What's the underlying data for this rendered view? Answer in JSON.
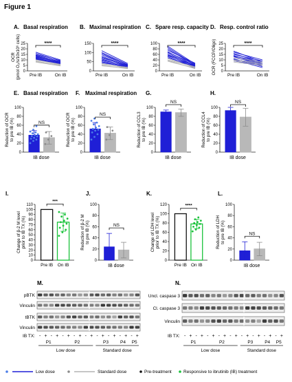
{
  "figure_title": "Figure 1",
  "colors": {
    "low_dose": "#1f1fd6",
    "standard_dose": "#b3b3b3",
    "pre_treatment": "#111111",
    "responder": "#19c23a"
  },
  "legend": {
    "low_dose": "Low dose",
    "standard_dose": "Standard dose",
    "pre_treatment": "Pre-treatment",
    "responder": "Responsive to ibrutinib (IB) treatment"
  },
  "chart_data": [
    {
      "panel": "A.",
      "title": "Basal respiration",
      "type": "line",
      "ylabel": "OCR\n(pmol O₂/s/10x10⁶ cells)",
      "yticks": [
        "0",
        "5",
        "10",
        "15",
        "20",
        "25"
      ],
      "ylim": [
        0,
        25
      ],
      "categories": [
        "Pre IB",
        "On IB"
      ],
      "significance": "****",
      "series": [
        {
          "group": "low",
          "values": [
            17,
            10
          ]
        },
        {
          "group": "low",
          "values": [
            16,
            9
          ]
        },
        {
          "group": "low",
          "values": [
            15,
            9.5
          ]
        },
        {
          "group": "low",
          "values": [
            14.5,
            8
          ]
        },
        {
          "group": "low",
          "values": [
            14,
            8.5
          ]
        },
        {
          "group": "low",
          "values": [
            13.5,
            7.5
          ]
        },
        {
          "group": "low",
          "values": [
            13,
            7
          ]
        },
        {
          "group": "low",
          "values": [
            12.5,
            7.8
          ]
        },
        {
          "group": "low",
          "values": [
            12,
            6.5
          ]
        },
        {
          "group": "low",
          "values": [
            11.5,
            6
          ]
        },
        {
          "group": "low",
          "values": [
            11,
            7
          ]
        },
        {
          "group": "low",
          "values": [
            10.5,
            6.2
          ]
        },
        {
          "group": "standard",
          "values": [
            10,
            6
          ]
        },
        {
          "group": "standard",
          "values": [
            9,
            5
          ]
        },
        {
          "group": "standard",
          "values": [
            8.5,
            5.5
          ]
        },
        {
          "group": "standard",
          "values": [
            8,
            4.5
          ]
        }
      ]
    },
    {
      "panel": "B.",
      "title": "Maximal respiration",
      "type": "line",
      "yticks": [
        "0",
        "50",
        "100",
        "150"
      ],
      "ylim": [
        0,
        150
      ],
      "categories": [
        "Pre IB",
        "On IB"
      ],
      "significance": "****",
      "series": [
        {
          "group": "low",
          "values": [
            110,
            40
          ]
        },
        {
          "group": "low",
          "values": [
            100,
            35
          ]
        },
        {
          "group": "low",
          "values": [
            95,
            30
          ]
        },
        {
          "group": "low",
          "values": [
            88,
            32
          ]
        },
        {
          "group": "low",
          "values": [
            80,
            28
          ]
        },
        {
          "group": "low",
          "values": [
            75,
            25
          ]
        },
        {
          "group": "low",
          "values": [
            70,
            30
          ]
        },
        {
          "group": "low",
          "values": [
            65,
            22
          ]
        },
        {
          "group": "low",
          "values": [
            60,
            26
          ]
        },
        {
          "group": "low",
          "values": [
            55,
            20
          ]
        },
        {
          "group": "low",
          "values": [
            50,
            18
          ]
        },
        {
          "group": "low",
          "values": [
            45,
            22
          ]
        },
        {
          "group": "standard",
          "values": [
            40,
            15
          ]
        },
        {
          "group": "standard",
          "values": [
            35,
            20
          ]
        },
        {
          "group": "standard",
          "values": [
            30,
            12
          ]
        },
        {
          "group": "standard",
          "values": [
            28,
            14
          ]
        }
      ]
    },
    {
      "panel": "C.",
      "title": "Spare resp. capacity",
      "type": "line",
      "yticks": [
        "0",
        "20",
        "40",
        "60",
        "80",
        "100"
      ],
      "ylim": [
        0,
        100
      ],
      "categories": [
        "Pre IB",
        "On IB"
      ],
      "significance": "****",
      "series": [
        {
          "group": "low",
          "values": [
            90,
            25
          ]
        },
        {
          "group": "low",
          "values": [
            85,
            22
          ]
        },
        {
          "group": "low",
          "values": [
            80,
            20
          ]
        },
        {
          "group": "low",
          "values": [
            75,
            28
          ]
        },
        {
          "group": "low",
          "values": [
            70,
            18
          ]
        },
        {
          "group": "low",
          "values": [
            68,
            24
          ]
        },
        {
          "group": "low",
          "values": [
            65,
            15
          ]
        },
        {
          "group": "low",
          "values": [
            60,
            20
          ]
        },
        {
          "group": "low",
          "values": [
            58,
            12
          ]
        },
        {
          "group": "low",
          "values": [
            55,
            18
          ]
        },
        {
          "group": "low",
          "values": [
            52,
            10
          ]
        },
        {
          "group": "low",
          "values": [
            48,
            16
          ]
        },
        {
          "group": "standard",
          "values": [
            45,
            12
          ]
        },
        {
          "group": "standard",
          "values": [
            40,
            15
          ]
        },
        {
          "group": "standard",
          "values": [
            38,
            8
          ]
        },
        {
          "group": "standard",
          "values": [
            35,
            10
          ]
        }
      ]
    },
    {
      "panel": "D.",
      "title": "Resp. control ratio",
      "type": "line",
      "ylabel": "OCR (FCCP/Oligo)",
      "yticks": [
        "0",
        "5",
        "10",
        "15",
        "20",
        "25"
      ],
      "ylim": [
        0,
        25
      ],
      "categories": [
        "Pre IB",
        "On IB"
      ],
      "significance": "****",
      "series": [
        {
          "group": "low",
          "values": [
            18,
            8
          ]
        },
        {
          "group": "low",
          "values": [
            17,
            10
          ]
        },
        {
          "group": "low",
          "values": [
            16,
            7
          ]
        },
        {
          "group": "low",
          "values": [
            15,
            9
          ]
        },
        {
          "group": "low",
          "values": [
            14,
            6
          ]
        },
        {
          "group": "low",
          "values": [
            13.5,
            8
          ]
        },
        {
          "group": "low",
          "values": [
            13,
            5
          ]
        },
        {
          "group": "low",
          "values": [
            12,
            7
          ]
        },
        {
          "group": "low",
          "values": [
            11,
            4
          ]
        },
        {
          "group": "low",
          "values": [
            10.5,
            6
          ]
        },
        {
          "group": "low",
          "values": [
            10,
            3
          ]
        },
        {
          "group": "low",
          "values": [
            9,
            5
          ]
        },
        {
          "group": "standard",
          "values": [
            12,
            8
          ]
        },
        {
          "group": "standard",
          "values": [
            10,
            7
          ]
        },
        {
          "group": "standard",
          "values": [
            9,
            6
          ]
        },
        {
          "group": "standard",
          "values": [
            8,
            5
          ]
        }
      ]
    },
    {
      "panel": "E.",
      "title": "Basal respiration",
      "type": "bar",
      "ylabel": "Reduction of OCR\nto pre IB (%)",
      "yticks": [
        "0",
        "20",
        "40",
        "60",
        "80",
        "100"
      ],
      "ylim": [
        0,
        100
      ],
      "xlabel": "IB dose",
      "significance": "NS",
      "bars": [
        {
          "group": "low",
          "value": 38,
          "err": 10,
          "points": [
            20,
            25,
            28,
            30,
            32,
            35,
            36,
            38,
            40,
            42,
            44,
            46,
            50,
            58
          ]
        },
        {
          "group": "standard",
          "value": 32,
          "err": 14,
          "points": [
            18,
            28,
            36,
            44
          ]
        }
      ]
    },
    {
      "panel": "F.",
      "title": "Maximal respiration",
      "type": "bar",
      "ylabel": "Reduction of OCR\nto pre IB (%)",
      "yticks": [
        "0",
        "20",
        "40",
        "60",
        "80",
        "100"
      ],
      "ylim": [
        0,
        100
      ],
      "xlabel": "IB dose",
      "significance": "NS",
      "bars": [
        {
          "group": "low",
          "value": 52,
          "err": 14,
          "points": [
            28,
            34,
            40,
            44,
            48,
            50,
            52,
            55,
            58,
            62,
            66,
            70,
            75
          ]
        },
        {
          "group": "standard",
          "value": 42,
          "err": 14,
          "points": [
            28,
            38,
            48,
            56
          ]
        }
      ]
    },
    {
      "panel": "G.",
      "title": "",
      "type": "bar",
      "ylabel": "Reduction of CCL3\nto pre IB (%)",
      "yticks": [
        "0",
        "20",
        "40",
        "60",
        "80",
        "100"
      ],
      "ylim": [
        0,
        100
      ],
      "xlabel": "IB dose",
      "significance": "NS",
      "bars": [
        {
          "group": "low",
          "value": 90,
          "err": 4,
          "points": []
        },
        {
          "group": "standard",
          "value": 88,
          "err": 8,
          "points": []
        }
      ]
    },
    {
      "panel": "H.",
      "title": "",
      "type": "bar",
      "ylabel": "Reduction of CCL4\nto pre IB (%)",
      "yticks": [
        "0",
        "20",
        "40",
        "60",
        "80",
        "100"
      ],
      "ylim": [
        0,
        100
      ],
      "xlabel": "IB dose",
      "significance": "NS",
      "bars": [
        {
          "group": "low",
          "value": 93,
          "err": 8,
          "points": []
        },
        {
          "group": "standard",
          "value": 78,
          "err": 20,
          "points": []
        }
      ]
    },
    {
      "panel": "I.",
      "title": "",
      "type": "bar",
      "ylabel": "Change of β-2 M level\nprior to IB TX (%)",
      "yticks": [
        "0",
        "10",
        "20",
        "30",
        "40",
        "50",
        "60",
        "70",
        "80",
        "90",
        "100",
        "110"
      ],
      "ylim": [
        0,
        110
      ],
      "categories": [
        "Pre IB",
        "On IB"
      ],
      "significance": "***",
      "bars": [
        {
          "group": "pre",
          "value": 100,
          "err": 0,
          "points": []
        },
        {
          "group": "responder",
          "value": 75,
          "err": 18,
          "points": [
            48,
            55,
            60,
            64,
            68,
            72,
            75,
            78,
            82,
            86,
            90,
            95
          ]
        }
      ]
    },
    {
      "panel": "J.",
      "title": "",
      "type": "bar",
      "ylabel": "Reduction of β-2 M\nto pre IB (%)",
      "yticks": [
        "0",
        "20",
        "40",
        "60",
        "80",
        "100"
      ],
      "ylim": [
        0,
        100
      ],
      "xlabel": "IB dose",
      "significance": "NS",
      "bars": [
        {
          "group": "low",
          "value": 24,
          "err": 24,
          "points": []
        },
        {
          "group": "standard",
          "value": 18,
          "err": 14,
          "points": []
        }
      ]
    },
    {
      "panel": "K.",
      "title": "",
      "type": "bar",
      "ylabel": "Change of LDH level\nprior to IB TX (%)",
      "yticks": [
        "0",
        "20",
        "40",
        "60",
        "80",
        "100",
        "120"
      ],
      "ylim": [
        0,
        120
      ],
      "categories": [
        "Pre IB",
        "On IB"
      ],
      "significance": "****",
      "bars": [
        {
          "group": "pre",
          "value": 100,
          "err": 0,
          "points": []
        },
        {
          "group": "responder",
          "value": 78,
          "err": 10,
          "points": [
            62,
            66,
            70,
            72,
            75,
            78,
            80,
            82,
            85,
            88,
            92
          ]
        }
      ]
    },
    {
      "panel": "L.",
      "title": "",
      "type": "bar",
      "ylabel": "Reduction of LDH\nto pre IB (%)",
      "yticks": [
        "0",
        "20",
        "40",
        "60",
        "80",
        "100"
      ],
      "ylim": [
        0,
        100
      ],
      "xlabel": "IB dose",
      "significance": "NS",
      "bars": [
        {
          "group": "low",
          "value": 17,
          "err": 16,
          "points": []
        },
        {
          "group": "standard",
          "value": 20,
          "err": 12,
          "points": []
        }
      ]
    }
  ],
  "blots": {
    "M": {
      "panel": "M.",
      "rows": [
        "pBTK",
        "Vinculin",
        "tBTK",
        "Vinculin"
      ],
      "treatment_label": "IB TX:",
      "treatment_signs": [
        "-",
        "+",
        "-",
        "+",
        "-",
        "+",
        "-",
        "+",
        "-",
        "+",
        "-",
        "+",
        "-",
        "+",
        "-",
        "+",
        "-",
        "+"
      ],
      "patients": [
        "P1",
        "P2",
        "P3",
        "P4",
        "P5"
      ],
      "patient_lanes": [
        4,
        6,
        4,
        2,
        2
      ],
      "groups": [
        {
          "label": "Low dose",
          "lanes": 10
        },
        {
          "label": "Standard dose",
          "lanes": 8
        }
      ]
    },
    "N": {
      "panel": "N.",
      "rows": [
        "Uncl. caspase 3",
        "Cl. caspase 3",
        "Vinculin"
      ],
      "treatment_label": "IB TX:",
      "treatment_signs": [
        "-",
        "+",
        "-",
        "+",
        "-",
        "+",
        "-",
        "+",
        "-",
        "+",
        "-",
        "+",
        "-",
        "+",
        "-",
        "+",
        "-",
        "+"
      ],
      "patients": [
        "P1",
        "P2",
        "P3",
        "P4",
        "P5"
      ],
      "patient_lanes": [
        4,
        6,
        4,
        2,
        2
      ],
      "groups": [
        {
          "label": "Low dose",
          "lanes": 10
        },
        {
          "label": "Standard dose",
          "lanes": 8
        }
      ]
    }
  }
}
